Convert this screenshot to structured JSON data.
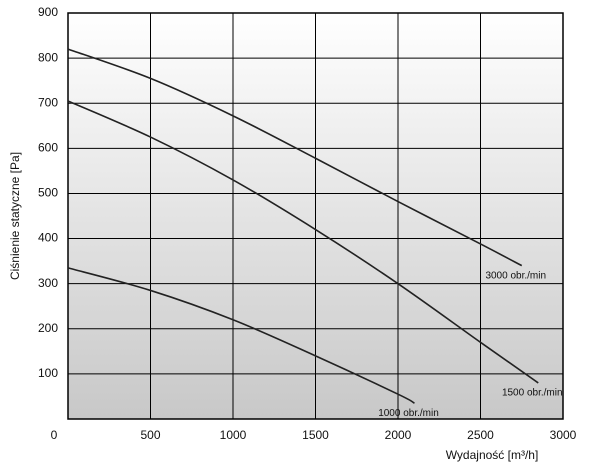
{
  "chart_data": {
    "type": "line",
    "xlabel": "Wydajność [m³/h]",
    "ylabel": "Ciśnienie statyczne [Pa]",
    "xlim": [
      0,
      3000
    ],
    "xticks": [
      0,
      500,
      1000,
      1500,
      2000,
      2500,
      3000
    ],
    "ylim": [
      0,
      900
    ],
    "yticks": [
      100,
      200,
      300,
      400,
      500,
      600,
      700,
      800,
      900
    ],
    "grid": true,
    "x": [
      0,
      500,
      1000,
      1500,
      2000,
      2500,
      2750,
      2850,
      2100
    ],
    "series": [
      {
        "name": "3000 obr./min",
        "color": "#222222",
        "x": [
          0,
          500,
          1000,
          1500,
          2000,
          2500,
          2750
        ],
        "values": [
          820,
          755,
          672,
          578,
          482,
          388,
          340
        ]
      },
      {
        "name": "1500 obr./min",
        "color": "#222222",
        "x": [
          0,
          500,
          1000,
          1500,
          2000,
          2500,
          2850
        ],
        "values": [
          705,
          625,
          530,
          420,
          300,
          170,
          80
        ]
      },
      {
        "name": "1000 obr./min",
        "color": "#222222",
        "x": [
          0,
          500,
          1000,
          1500,
          2000,
          2100
        ],
        "values": [
          335,
          285,
          220,
          140,
          55,
          35
        ]
      }
    ]
  }
}
